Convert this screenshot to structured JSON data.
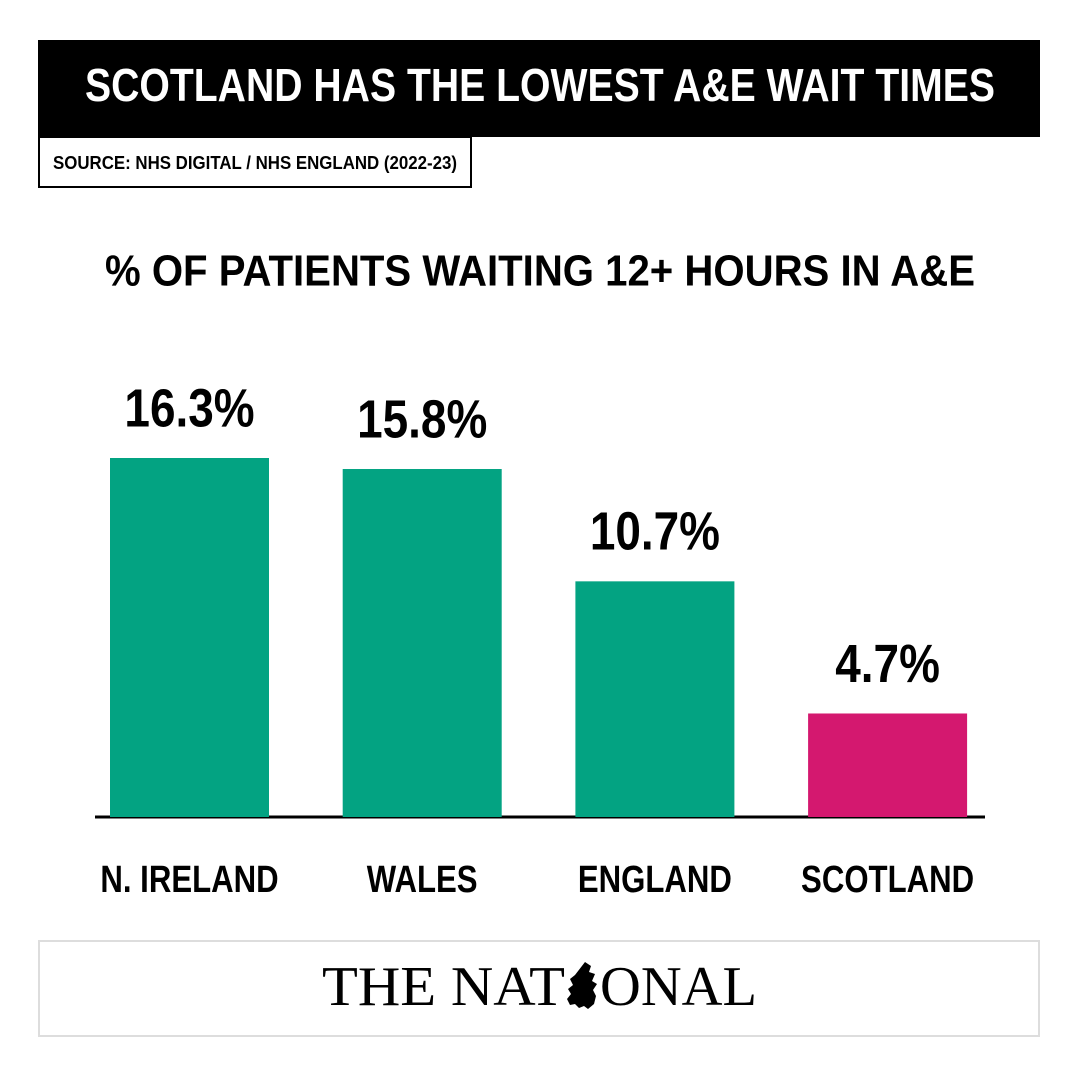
{
  "header": {
    "title": "SCOTLAND HAS THE LOWEST A&E WAIT TIMES",
    "source": "SOURCE: NHS DIGITAL / NHS ENGLAND (2022-23)"
  },
  "chart_data": {
    "type": "bar",
    "title": "% OF PATIENTS WAITING 12+ HOURS IN A&E",
    "categories": [
      "N. IRELAND",
      "WALES",
      "ENGLAND",
      "SCOTLAND"
    ],
    "values": [
      16.3,
      15.8,
      10.7,
      4.7
    ],
    "value_labels": [
      "16.3%",
      "15.8%",
      "10.7%",
      "4.7%"
    ],
    "colors": [
      "#03a382",
      "#03a382",
      "#03a382",
      "#d4186f"
    ]
  },
  "footer": {
    "logo_left": "THE NAT",
    "logo_right": "ONAL"
  }
}
